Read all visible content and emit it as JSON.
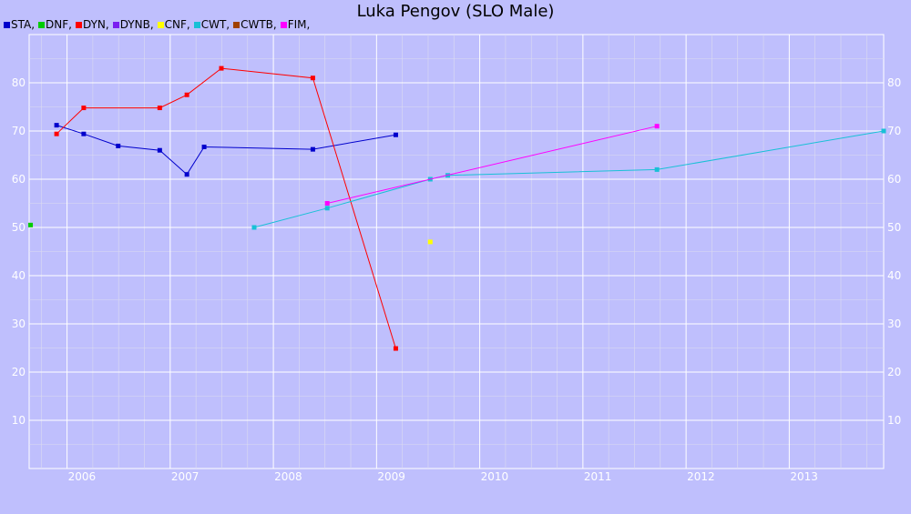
{
  "chart_data": {
    "type": "line",
    "title": "Luka Pengov (SLO Male)",
    "xlabel": "",
    "ylabel": "",
    "x_range": [
      "2005-08-20",
      "2013-12-01"
    ],
    "ylim": [
      0,
      90
    ],
    "x_ticks": [
      "2006",
      "2007",
      "2008",
      "2009",
      "2010",
      "2011",
      "2012",
      "2013"
    ],
    "y_ticks": [
      10,
      20,
      30,
      40,
      50,
      60,
      70,
      80
    ],
    "grid": true,
    "legend_position": "top-left",
    "series": [
      {
        "name": "STA,",
        "color": "#0000cc",
        "points": [
          {
            "date": "2005-11-25",
            "value": 71.2
          },
          {
            "date": "2006-03-01",
            "value": 69.4
          },
          {
            "date": "2006-07-01",
            "value": 66.9
          },
          {
            "date": "2006-11-25",
            "value": 66.0
          },
          {
            "date": "2007-03-01",
            "value": 61.0
          },
          {
            "date": "2007-05-01",
            "value": 66.7
          },
          {
            "date": "2008-05-20",
            "value": 66.2
          },
          {
            "date": "2009-03-10",
            "value": 69.2
          }
        ]
      },
      {
        "name": "DNF,",
        "color": "#00cc00",
        "points": [
          {
            "date": "2005-08-25",
            "value": 50.5
          }
        ]
      },
      {
        "name": "DYN,",
        "color": "#ff0000",
        "points": [
          {
            "date": "2005-11-25",
            "value": 69.4
          },
          {
            "date": "2006-03-01",
            "value": 74.8
          },
          {
            "date": "2006-11-25",
            "value": 74.8
          },
          {
            "date": "2007-03-01",
            "value": 77.5
          },
          {
            "date": "2007-07-01",
            "value": 83.0
          },
          {
            "date": "2008-05-20",
            "value": 81.0
          },
          {
            "date": "2009-03-10",
            "value": 24.9
          }
        ]
      },
      {
        "name": "DYNB,",
        "color": "#7a1ff0",
        "points": []
      },
      {
        "name": "CNF,",
        "color": "#ffff00",
        "points": [
          {
            "date": "2009-07-10",
            "value": 47.0
          }
        ]
      },
      {
        "name": "CWT,",
        "color": "#19c0d6",
        "points": [
          {
            "date": "2007-10-25",
            "value": 50.0
          },
          {
            "date": "2008-07-10",
            "value": 54.0
          },
          {
            "date": "2009-07-10",
            "value": 60.0
          },
          {
            "date": "2009-09-10",
            "value": 60.8
          },
          {
            "date": "2011-09-20",
            "value": 62.0
          },
          {
            "date": "2013-12-01",
            "value": 70.0
          }
        ]
      },
      {
        "name": "CWTB,",
        "color": "#a04000",
        "points": []
      },
      {
        "name": "FIM,",
        "color": "#ff00ff",
        "points": [
          {
            "date": "2008-07-10",
            "value": 55.0
          },
          {
            "date": "2011-09-20",
            "value": 71.0
          }
        ]
      }
    ]
  }
}
